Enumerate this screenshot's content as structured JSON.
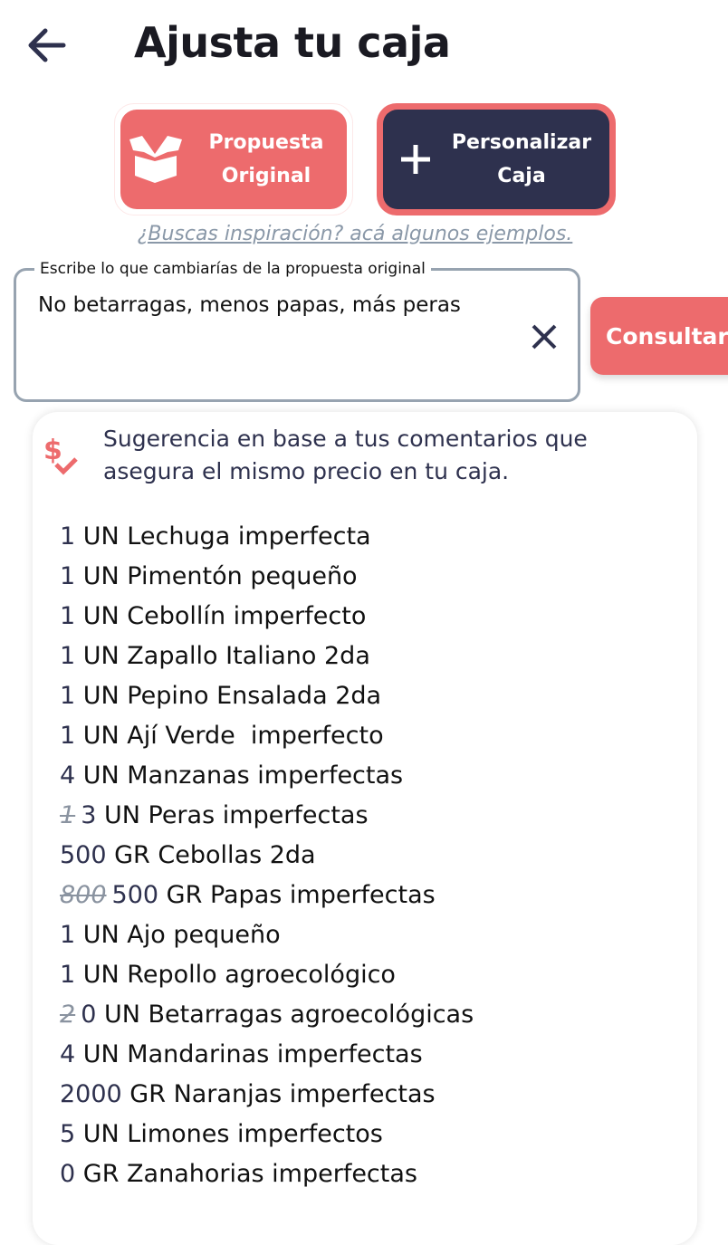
{
  "header": {
    "title": "Ajusta tu caja",
    "back_icon": "arrow-left-icon"
  },
  "tabs": [
    {
      "label_line1": "Propuesta",
      "label_line2": "Original",
      "icon": "open-box-icon"
    },
    {
      "label_line1": "Personalizar",
      "label_line2": "Caja",
      "icon": "plus-icon"
    }
  ],
  "inspiration_link": "¿Buscas inspiración? acá algunos ejemplos.",
  "input": {
    "label": "Escribe lo que cambiarías de la propuesta original",
    "value": "No betarragas, menos papas, más peras"
  },
  "consult_label": "Consultar",
  "suggestion": {
    "text": "Sugerencia en base a tus comentarios que asegura el mismo precio en tu caja.",
    "icon": "price-check-icon"
  },
  "items": [
    {
      "old": "",
      "qty": "1",
      "rest": " UN Lechuga imperfecta"
    },
    {
      "old": "",
      "qty": "1",
      "rest": " UN Pimentón pequeño"
    },
    {
      "old": "",
      "qty": "1",
      "rest": " UN Cebollín imperfecto"
    },
    {
      "old": "",
      "qty": "1",
      "rest": " UN Zapallo Italiano 2da"
    },
    {
      "old": "",
      "qty": "1",
      "rest": " UN Pepino Ensalada 2da"
    },
    {
      "old": "",
      "qty": "1",
      "rest": " UN Ají Verde  imperfecto"
    },
    {
      "old": "",
      "qty": "4",
      "rest": " UN Manzanas imperfectas"
    },
    {
      "old": "1",
      "qty": "3",
      "rest": " UN Peras imperfectas"
    },
    {
      "old": "",
      "qty": "500",
      "rest": " GR Cebollas 2da"
    },
    {
      "old": "800",
      "qty": "500",
      "rest": " GR Papas imperfectas"
    },
    {
      "old": "",
      "qty": "1",
      "rest": " UN Ajo pequeño"
    },
    {
      "old": "",
      "qty": "1",
      "rest": " UN Repollo agroecológico"
    },
    {
      "old": "2",
      "qty": "0",
      "rest": " UN Betarragas agroecológicas"
    },
    {
      "old": "",
      "qty": "4",
      "rest": " UN Mandarinas imperfectas"
    },
    {
      "old": "",
      "qty": "2000",
      "rest": " GR Naranjas imperfectas"
    },
    {
      "old": "",
      "qty": "5",
      "rest": " UN Limones imperfectos"
    },
    {
      "old": "",
      "qty": "0",
      "rest": " GR Zanahorias imperfectas"
    }
  ],
  "colors": {
    "accent": "#ed6b6d",
    "navy": "#2e314e",
    "border": "#97a3b0"
  }
}
